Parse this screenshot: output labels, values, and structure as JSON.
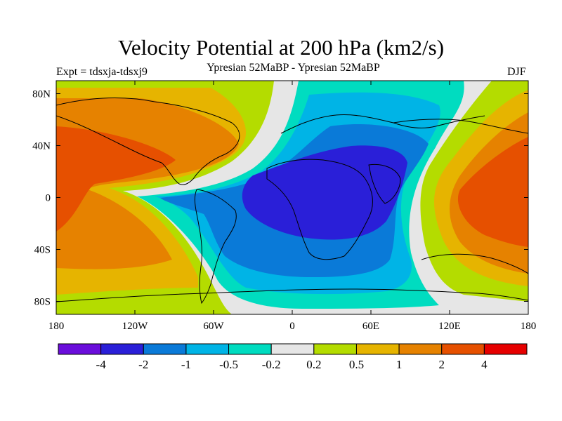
{
  "title": "Velocity Potential at 200 hPa (km2/s)",
  "subtitle": "Ypresian  52MaBP - Ypresian  52MaBP",
  "experiment": "Expt = tdsxja-tdsxj9",
  "season": "DJF",
  "chart_data": {
    "type": "heatmap",
    "variable": "Velocity Potential",
    "level": "200 hPa",
    "units": "km2/s",
    "x_axis": {
      "range": [
        -180,
        180
      ],
      "ticks": [
        {
          "value": -180,
          "label": "180"
        },
        {
          "value": -120,
          "label": "120W"
        },
        {
          "value": -60,
          "label": "60W"
        },
        {
          "value": 0,
          "label": "0"
        },
        {
          "value": 60,
          "label": "60E"
        },
        {
          "value": 120,
          "label": "120E"
        },
        {
          "value": 180,
          "label": "180"
        }
      ]
    },
    "y_axis": {
      "range": [
        -90,
        90
      ],
      "ticks": [
        {
          "value": 80,
          "label": "80N"
        },
        {
          "value": 40,
          "label": "40N"
        },
        {
          "value": 0,
          "label": "0"
        },
        {
          "value": -40,
          "label": "40S"
        },
        {
          "value": -80,
          "label": "80S"
        }
      ]
    },
    "levels": [
      -4,
      -2,
      -1,
      -0.5,
      -0.2,
      0.2,
      0.5,
      1,
      2,
      4
    ],
    "level_labels": [
      "-4",
      "-2",
      "-1",
      "-0.5",
      "-0.2",
      "0.2",
      "0.5",
      "1",
      "2",
      "4"
    ],
    "colors": [
      "#6a0ddb",
      "#2a1fd8",
      "#0a7ad8",
      "#00b4e6",
      "#00dcc0",
      "#e6e6e6",
      "#b4dc00",
      "#e6b400",
      "#e68200",
      "#e65000",
      "#e60000"
    ],
    "centers": [
      {
        "name": "central-minimum",
        "lon": 30,
        "lat": 5,
        "band": "-2 to -4"
      },
      {
        "name": "west-pacific-maximum",
        "lon": 175,
        "lat": -5,
        "band": "2 to 4"
      },
      {
        "name": "east-pacific-maximum",
        "lon": -170,
        "lat": 10,
        "band": "2 to 4"
      }
    ]
  }
}
